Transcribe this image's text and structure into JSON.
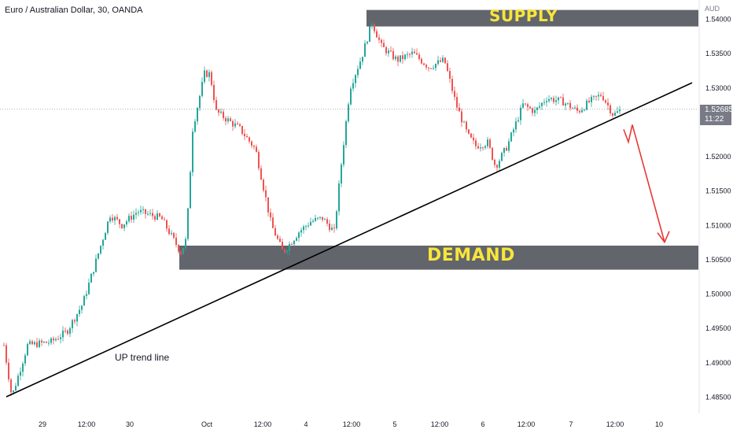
{
  "header": {
    "symbol_title": "Euro / Australian Dollar, 30, OANDA",
    "currency": "AUD"
  },
  "annotations": {
    "supply": "SUPPLY",
    "demand": "DEMAND",
    "trend": "UP trend line"
  },
  "price_tag": {
    "price": "1.52685",
    "countdown": "11:22"
  },
  "colors": {
    "up_candle": "#26a69a",
    "down_candle": "#ef5350",
    "zone_fill": "#5d6066",
    "zone_text": "#f7e53b",
    "trend_line": "#000000",
    "arrow": "#e53935"
  },
  "chart_data": {
    "type": "candlestick",
    "title": "Euro / Australian Dollar, 30, OANDA",
    "y_unit": "AUD",
    "ylim": [
      1.4835,
      1.5425
    ],
    "y_ticks": [
      "1.54000",
      "1.53500",
      "1.53000",
      "1.52500",
      "1.52000",
      "1.51500",
      "1.51000",
      "1.50500",
      "1.50000",
      "1.49500",
      "1.49000",
      "1.48500"
    ],
    "x_ticks": [
      "29",
      "12:00",
      "30",
      "Oct",
      "12:00",
      "4",
      "12:00",
      "5",
      "12:00",
      "6",
      "12:00",
      "7",
      "12:00",
      "10"
    ],
    "close_path": [
      [
        0,
        1.4925
      ],
      [
        10,
        1.485
      ],
      [
        30,
        1.4925
      ],
      [
        60,
        1.493
      ],
      [
        80,
        1.4945
      ],
      [
        100,
        1.4985
      ],
      [
        115,
        1.504
      ],
      [
        135,
        1.5115
      ],
      [
        150,
        1.51
      ],
      [
        170,
        1.512
      ],
      [
        200,
        1.511
      ],
      [
        225,
        1.506
      ],
      [
        232,
        1.508
      ],
      [
        240,
        1.524
      ],
      [
        255,
        1.532
      ],
      [
        262,
        1.532
      ],
      [
        270,
        1.5265
      ],
      [
        300,
        1.524
      ],
      [
        320,
        1.521
      ],
      [
        340,
        1.51
      ],
      [
        355,
        1.506
      ],
      [
        375,
        1.509
      ],
      [
        390,
        1.5105
      ],
      [
        405,
        1.511
      ],
      [
        420,
        1.509
      ],
      [
        430,
        1.52
      ],
      [
        440,
        1.53
      ],
      [
        455,
        1.5345
      ],
      [
        468,
        1.5395
      ],
      [
        480,
        1.536
      ],
      [
        500,
        1.534
      ],
      [
        520,
        1.535
      ],
      [
        540,
        1.533
      ],
      [
        560,
        1.534
      ],
      [
        575,
        1.5275
      ],
      [
        590,
        1.523
      ],
      [
        600,
        1.5215
      ],
      [
        615,
        1.522
      ],
      [
        625,
        1.5185
      ],
      [
        640,
        1.5215
      ],
      [
        660,
        1.5275
      ],
      [
        675,
        1.5265
      ],
      [
        690,
        1.5285
      ],
      [
        710,
        1.528
      ],
      [
        730,
        1.5265
      ],
      [
        745,
        1.528
      ],
      [
        760,
        1.529
      ],
      [
        775,
        1.526
      ],
      [
        785,
        1.5268
      ]
    ],
    "zones": [
      {
        "name": "SUPPLY",
        "high": 1.5413,
        "low": 1.5389
      },
      {
        "name": "DEMAND",
        "high": 1.507,
        "low": 1.5035
      }
    ],
    "trend_line": {
      "label": "UP trend line",
      "from": [
        8,
        1.485
      ],
      "to": [
        880,
        1.5307
      ]
    },
    "last_price": 1.52685,
    "projection": {
      "from_price": 1.5246,
      "to_price": 1.5075
    }
  }
}
